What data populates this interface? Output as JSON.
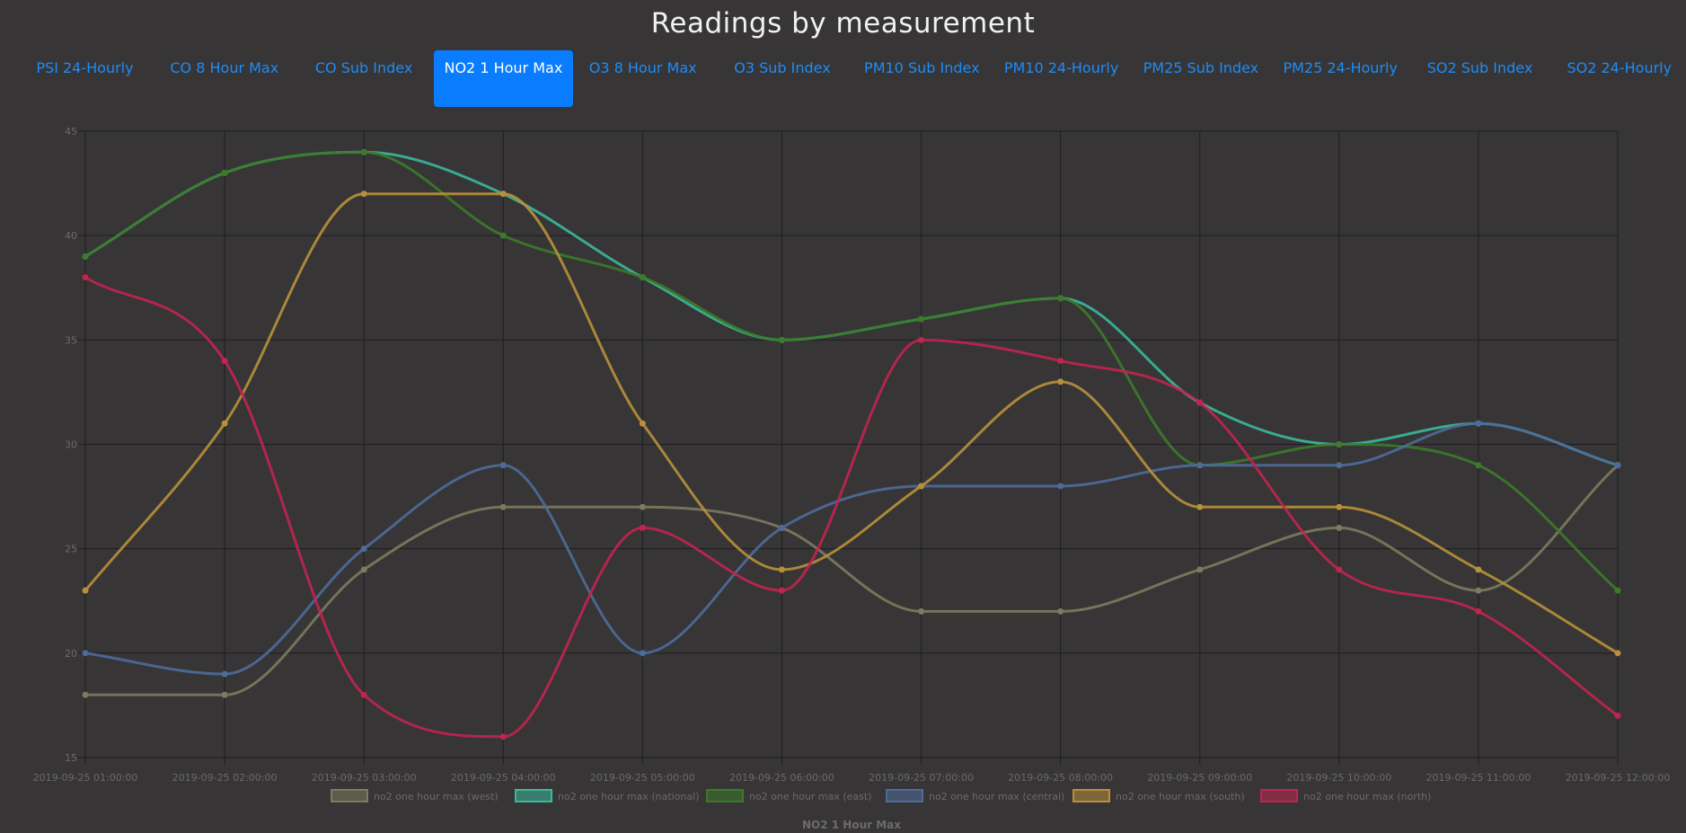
{
  "page": {
    "title": "Readings by measurement"
  },
  "tabs": [
    {
      "label": "PSI 24-Hourly",
      "active": false
    },
    {
      "label": "CO 8 Hour Max",
      "active": false
    },
    {
      "label": "CO Sub Index",
      "active": false
    },
    {
      "label": "NO2 1 Hour Max",
      "active": true
    },
    {
      "label": "O3 8 Hour Max",
      "active": false
    },
    {
      "label": "O3 Sub Index",
      "active": false
    },
    {
      "label": "PM10 Sub Index",
      "active": false
    },
    {
      "label": "PM10 24-Hourly",
      "active": false
    },
    {
      "label": "PM25 Sub Index",
      "active": false
    },
    {
      "label": "PM25 24-Hourly",
      "active": false
    },
    {
      "label": "SO2 Sub Index",
      "active": false
    },
    {
      "label": "SO2 24-Hourly",
      "active": false
    }
  ],
  "colors": {
    "background": "#373536",
    "tab_text": "#1d8cf8",
    "tab_active_bg": "#0a7cff",
    "grid": "#1e1d21",
    "axis_text": "#6b6a6c"
  },
  "chart_data": {
    "type": "line",
    "title": "NO2 1 Hour Max",
    "xlabel": "",
    "ylabel": "",
    "ylim": [
      15,
      45
    ],
    "yticks": [
      15,
      20,
      25,
      30,
      35,
      40,
      45
    ],
    "grid": true,
    "legend_position": "bottom",
    "x": [
      "2019-09-25 01:00:00",
      "2019-09-25 02:00:00",
      "2019-09-25 03:00:00",
      "2019-09-25 04:00:00",
      "2019-09-25 05:00:00",
      "2019-09-25 06:00:00",
      "2019-09-25 07:00:00",
      "2019-09-25 08:00:00",
      "2019-09-25 09:00:00",
      "2019-09-25 10:00:00",
      "2019-09-25 11:00:00",
      "2019-09-25 12:00:00"
    ],
    "series": [
      {
        "name": "no2 one hour max (west)",
        "color": "#7c7b5e",
        "values": [
          18,
          18,
          24,
          27,
          27,
          26,
          22,
          22,
          24,
          26,
          23,
          29
        ]
      },
      {
        "name": "no2 one hour max (national)",
        "color": "#3ab89a",
        "values": [
          39,
          43,
          44,
          42,
          38,
          35,
          36,
          37,
          32,
          30,
          31,
          29
        ]
      },
      {
        "name": "no2 one hour max (east)",
        "color": "#3d7a2a",
        "values": [
          39,
          43,
          44,
          40,
          38,
          35,
          36,
          37,
          29,
          30,
          29,
          23
        ]
      },
      {
        "name": "no2 one hour max (central)",
        "color": "#4e6b99",
        "values": [
          20,
          19,
          25,
          29,
          20,
          26,
          28,
          28,
          29,
          29,
          31,
          29
        ]
      },
      {
        "name": "no2 one hour max (south)",
        "color": "#b8903a",
        "values": [
          23,
          31,
          42,
          42,
          31,
          24,
          28,
          33,
          27,
          27,
          24,
          20
        ]
      },
      {
        "name": "no2 one hour max (north)",
        "color": "#c0254f",
        "values": [
          38,
          34,
          18,
          16,
          26,
          23,
          35,
          34,
          32,
          24,
          22,
          17
        ]
      }
    ]
  }
}
